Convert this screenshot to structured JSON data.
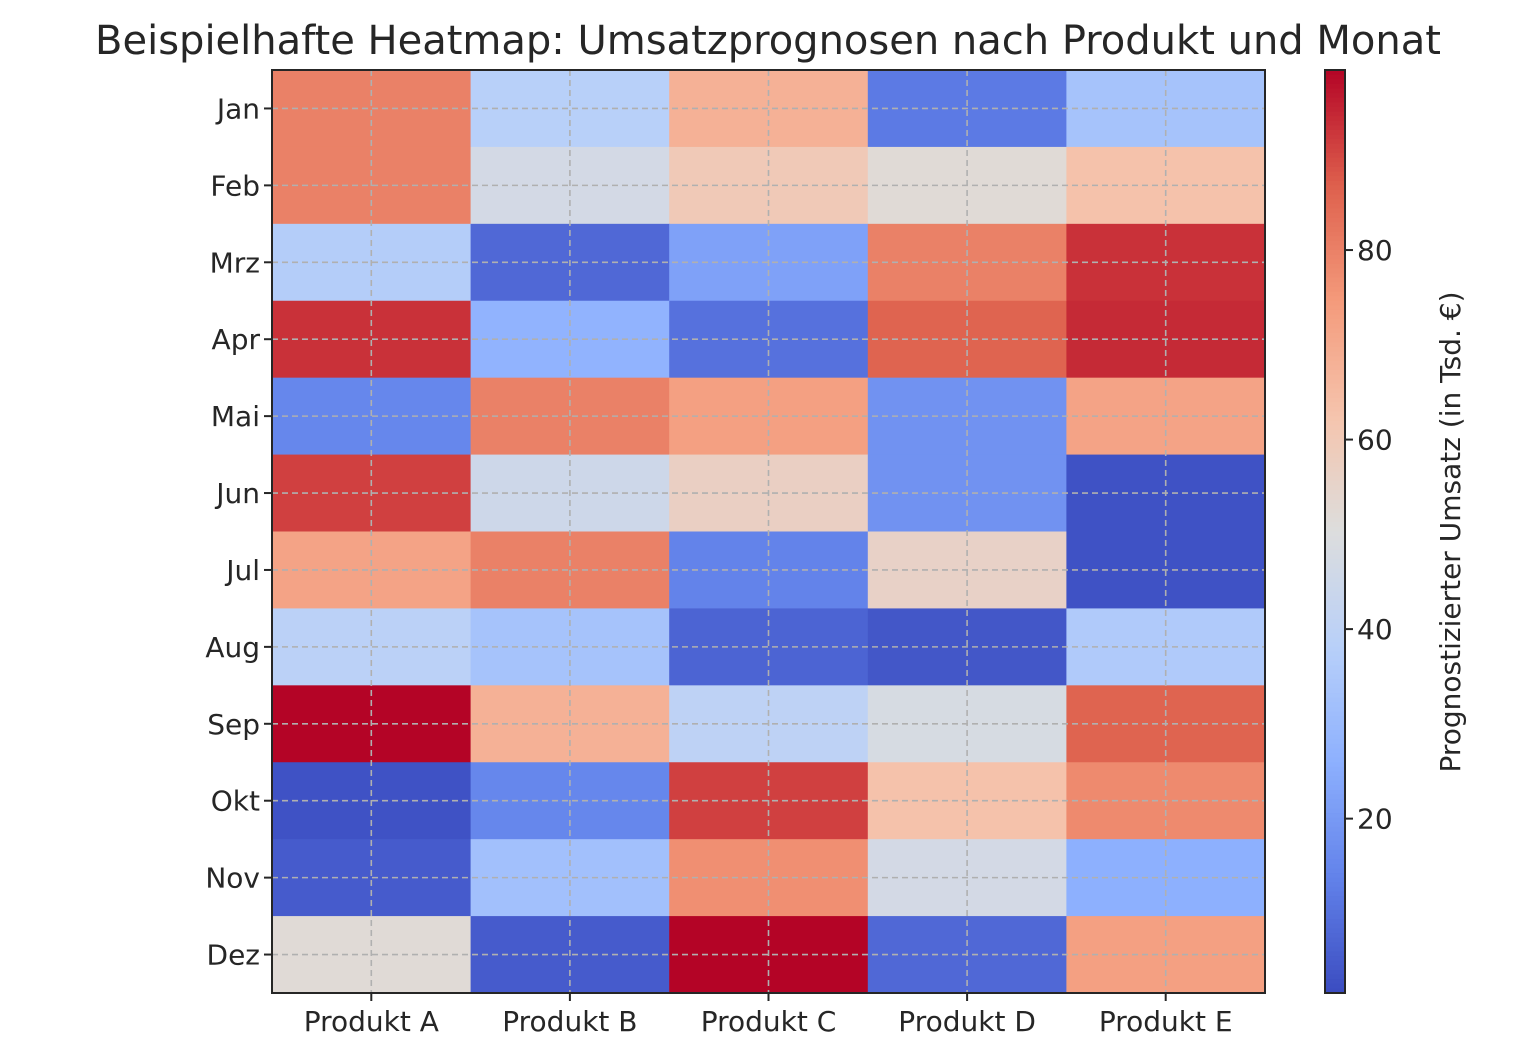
{
  "chart_data": {
    "type": "heatmap",
    "title": "Beispielhafte Heatmap: Umsatzprognosen nach Produkt und Monat",
    "x_categories": [
      "Produkt A",
      "Produkt B",
      "Produkt C",
      "Produkt D",
      "Produkt E"
    ],
    "y_categories": [
      "Jan",
      "Feb",
      "Mrz",
      "Apr",
      "Mai",
      "Jun",
      "Jul",
      "Aug",
      "Sep",
      "Okt",
      "Nov",
      "Dez"
    ],
    "values": [
      [
        80,
        38,
        68,
        12,
        33
      ],
      [
        80,
        47,
        60,
        52,
        63
      ],
      [
        37,
        8,
        22,
        80,
        93
      ],
      [
        93,
        27,
        10,
        86,
        94
      ],
      [
        15,
        80,
        73,
        18,
        72
      ],
      [
        91,
        45,
        57,
        18,
        3
      ],
      [
        72,
        80,
        14,
        56,
        3
      ],
      [
        39,
        33,
        7,
        4,
        36
      ],
      [
        99,
        68,
        40,
        48,
        86
      ],
      [
        3,
        15,
        91,
        63,
        78
      ],
      [
        5,
        32,
        77,
        47,
        26
      ],
      [
        52,
        5,
        99,
        8,
        73
      ]
    ],
    "colormap": "coolwarm",
    "color_range": [
      1.6,
      99
    ],
    "colorbar_label": "Prognostizierter Umsatz (in Tsd. €)",
    "colorbar_ticks": [
      20,
      40,
      60,
      80
    ],
    "grid": true
  }
}
